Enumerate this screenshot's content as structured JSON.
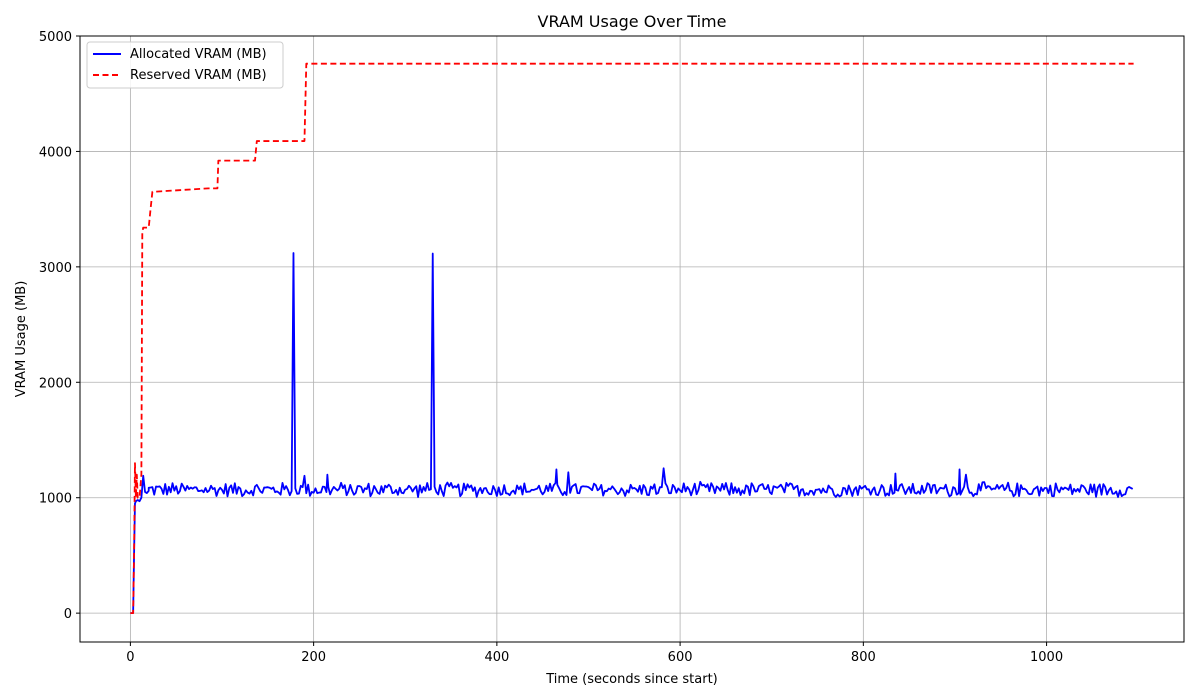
{
  "chart_data": {
    "type": "line",
    "title": "VRAM Usage Over Time",
    "xlabel": "Time (seconds since start)",
    "ylabel": "VRAM Usage (MB)",
    "xlim": [
      -55,
      1150
    ],
    "ylim": [
      -250,
      5000
    ],
    "xticks": [
      0,
      200,
      400,
      600,
      800,
      1000
    ],
    "yticks": [
      0,
      1000,
      2000,
      3000,
      4000,
      5000
    ],
    "grid": true,
    "legend_position": "top-left",
    "series": [
      {
        "name": "Allocated VRAM (MB)",
        "color": "#0000ff",
        "style": "solid",
        "baseline_x": [
          0,
          3,
          4,
          5,
          6,
          8,
          10,
          12,
          14,
          16,
          18,
          20
        ],
        "baseline_y": [
          0,
          0,
          500,
          950,
          970,
          980,
          970,
          1000,
          1190,
          1050,
          1040,
          1060
        ],
        "noise_x_range": [
          20,
          1095
        ],
        "noise_step": 2,
        "noise_base": 1070,
        "noise_amplitude": 70,
        "spikes": [
          {
            "x": 178,
            "y": 3120
          },
          {
            "x": 330,
            "y": 3115
          },
          {
            "x": 190,
            "y": 1190
          },
          {
            "x": 215,
            "y": 1200
          },
          {
            "x": 465,
            "y": 1245
          },
          {
            "x": 478,
            "y": 1220
          },
          {
            "x": 582,
            "y": 1255
          },
          {
            "x": 835,
            "y": 1210
          },
          {
            "x": 905,
            "y": 1245
          },
          {
            "x": 912,
            "y": 1200
          }
        ]
      },
      {
        "name": "Reserved VRAM (MB)",
        "color": "#ff0000",
        "style": "dashed",
        "x": [
          0,
          3,
          4,
          5,
          6,
          7,
          8,
          10,
          12,
          13,
          14,
          20,
          22,
          24,
          85,
          95,
          96,
          136,
          138,
          190,
          192,
          1095
        ],
        "y": [
          0,
          0,
          500,
          1300,
          1000,
          1200,
          1000,
          1000,
          1200,
          3300,
          3340,
          3340,
          3500,
          3650,
          3680,
          3680,
          3920,
          3920,
          4090,
          4090,
          4760,
          4760
        ]
      }
    ]
  }
}
